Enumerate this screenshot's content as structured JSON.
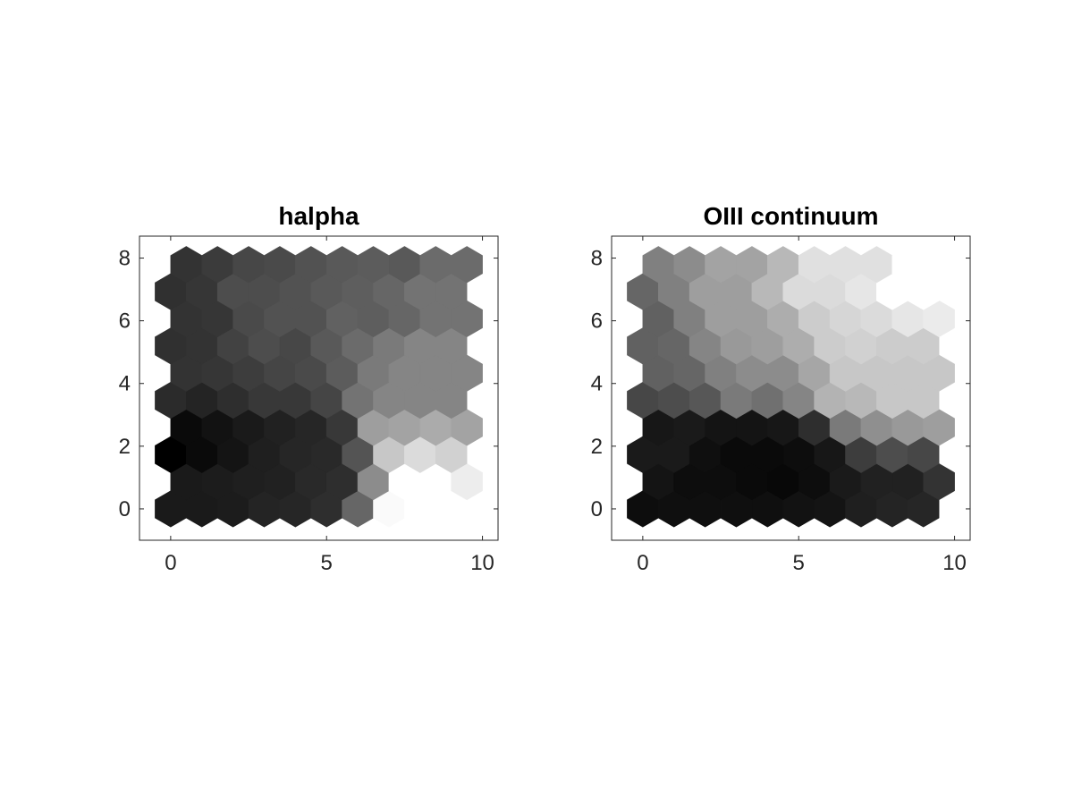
{
  "chart_data": [
    {
      "type": "heatmap",
      "layout": "hexagonal",
      "title": "halpha",
      "xlabel": "",
      "ylabel": "",
      "xlim": [
        -1,
        10.5
      ],
      "ylim": [
        -1,
        8.7
      ],
      "xticks": [
        0,
        5,
        10
      ],
      "yticks": [
        0,
        2,
        4,
        6,
        8
      ],
      "grid": false,
      "colormap": "gray",
      "value_range": [
        0,
        1
      ],
      "rows": [
        [
          0.1,
          0.1,
          0.11,
          0.14,
          0.15,
          0.18,
          0.4,
          0.98,
          1.0,
          1.0
        ],
        [
          0.1,
          0.11,
          0.12,
          0.13,
          0.16,
          0.18,
          0.55,
          1.0,
          1.0,
          0.93
        ],
        [
          0.0,
          0.04,
          0.08,
          0.12,
          0.15,
          0.16,
          0.33,
          0.78,
          0.86,
          0.82
        ],
        [
          0.04,
          0.07,
          0.1,
          0.13,
          0.15,
          0.22,
          0.62,
          0.64,
          0.67,
          0.64
        ],
        [
          0.17,
          0.14,
          0.18,
          0.22,
          0.22,
          0.27,
          0.45,
          0.52,
          0.52,
          0.52
        ],
        [
          0.2,
          0.21,
          0.24,
          0.27,
          0.29,
          0.36,
          0.48,
          0.52,
          0.52,
          0.52
        ],
        [
          0.19,
          0.2,
          0.26,
          0.3,
          0.28,
          0.35,
          0.42,
          0.48,
          0.52,
          0.52
        ],
        [
          0.2,
          0.21,
          0.29,
          0.32,
          0.32,
          0.38,
          0.37,
          0.4,
          0.45,
          0.45
        ],
        [
          0.19,
          0.21,
          0.3,
          0.3,
          0.32,
          0.35,
          0.37,
          0.4,
          0.45,
          0.45
        ],
        [
          0.2,
          0.23,
          0.28,
          0.29,
          0.32,
          0.35,
          0.36,
          0.35,
          0.42,
          0.42
        ]
      ]
    },
    {
      "type": "heatmap",
      "layout": "hexagonal",
      "title": "OIII continuum",
      "xlabel": "",
      "ylabel": "",
      "xlim": [
        -1,
        10.5
      ],
      "ylim": [
        -1,
        8.7
      ],
      "xticks": [
        0,
        5,
        10
      ],
      "yticks": [
        0,
        2,
        4,
        6,
        8
      ],
      "grid": false,
      "colormap": "gray",
      "value_range": [
        0,
        1
      ],
      "rows": [
        [
          0.05,
          0.06,
          0.06,
          0.06,
          0.06,
          0.07,
          0.08,
          0.12,
          0.14,
          0.15
        ],
        [
          0.08,
          0.05,
          0.05,
          0.04,
          0.03,
          0.05,
          0.1,
          0.13,
          0.13,
          0.2
        ],
        [
          0.1,
          0.1,
          0.06,
          0.04,
          0.04,
          0.05,
          0.09,
          0.24,
          0.3,
          0.28
        ],
        [
          0.09,
          0.1,
          0.08,
          0.08,
          0.09,
          0.18,
          0.48,
          0.56,
          0.6,
          0.62
        ],
        [
          0.28,
          0.3,
          0.34,
          0.48,
          0.44,
          0.52,
          0.7,
          0.72,
          0.78,
          0.78
        ],
        [
          0.38,
          0.4,
          0.5,
          0.55,
          0.55,
          0.65,
          0.78,
          0.78,
          0.78,
          0.78
        ],
        [
          0.38,
          0.4,
          0.52,
          0.6,
          0.62,
          0.68,
          0.8,
          0.82,
          0.8,
          0.8
        ],
        [
          0.38,
          0.5,
          0.62,
          0.62,
          0.68,
          0.8,
          0.84,
          0.86,
          0.9,
          0.92
        ],
        [
          0.4,
          0.5,
          0.62,
          0.62,
          0.72,
          0.86,
          0.86,
          0.9,
          1.0,
          1.0
        ],
        [
          0.5,
          0.55,
          0.64,
          0.64,
          0.72,
          0.88,
          0.88,
          0.88,
          1.0,
          1.0
        ]
      ]
    }
  ]
}
